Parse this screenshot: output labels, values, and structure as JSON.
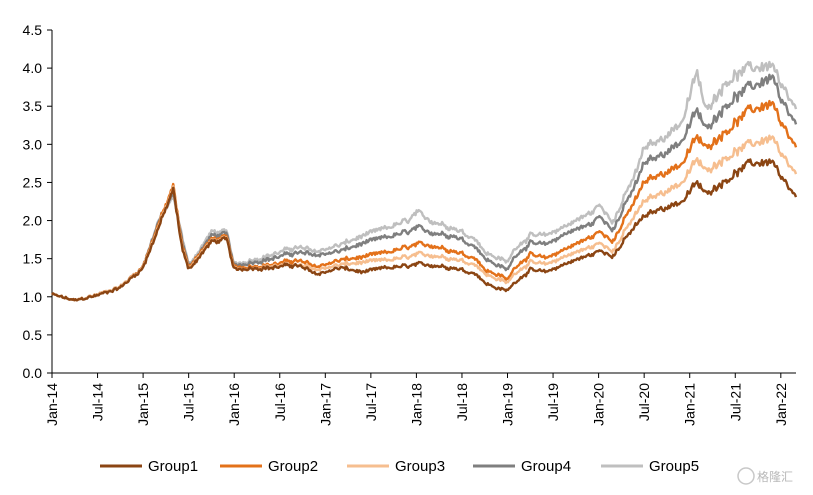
{
  "chart_data": {
    "type": "line",
    "title": "",
    "xlabel": "",
    "ylabel": "",
    "ylim": [
      0.0,
      4.5
    ],
    "y_ticks": [
      "0.0",
      "0.5",
      "1.0",
      "1.5",
      "2.0",
      "2.5",
      "3.0",
      "3.5",
      "4.0",
      "4.5"
    ],
    "x_ticks": [
      "Jan-14",
      "Jul-14",
      "Jan-15",
      "Jul-15",
      "Jan-16",
      "Jul-16",
      "Jan-17",
      "Jul-17",
      "Jan-18",
      "Jul-18",
      "Jan-19",
      "Jul-19",
      "Jan-20",
      "Jul-20",
      "Jan-21",
      "Jul-21",
      "Jan-22"
    ],
    "x_range": [
      "2014-01",
      "2022-03"
    ],
    "grid": false,
    "legend_position": "bottom",
    "x_dates": [
      "2014-01",
      "2014-04",
      "2014-07",
      "2014-10",
      "2015-01",
      "2015-03",
      "2015-05",
      "2015-06",
      "2015-07",
      "2015-08",
      "2015-10",
      "2015-12",
      "2016-01",
      "2016-03",
      "2016-06",
      "2016-09",
      "2016-12",
      "2017-03",
      "2017-06",
      "2017-09",
      "2017-12",
      "2018-01",
      "2018-03",
      "2018-06",
      "2018-09",
      "2018-10",
      "2018-12",
      "2019-01",
      "2019-02",
      "2019-04",
      "2019-06",
      "2019-09",
      "2019-12",
      "2020-01",
      "2020-03",
      "2020-06",
      "2020-07",
      "2020-09",
      "2020-12",
      "2021-02",
      "2021-03",
      "2021-06",
      "2021-09",
      "2021-12",
      "2022-01",
      "2022-03"
    ],
    "series": [
      {
        "name": "Group1",
        "color": "#8B4513",
        "values": [
          1.03,
          0.95,
          1.02,
          1.12,
          1.38,
          1.9,
          2.4,
          1.7,
          1.35,
          1.48,
          1.72,
          1.75,
          1.35,
          1.38,
          1.38,
          1.42,
          1.3,
          1.38,
          1.32,
          1.38,
          1.4,
          1.42,
          1.42,
          1.38,
          1.3,
          1.18,
          1.1,
          1.08,
          1.2,
          1.35,
          1.32,
          1.45,
          1.55,
          1.6,
          1.55,
          1.95,
          2.05,
          2.15,
          2.25,
          2.5,
          2.35,
          2.55,
          2.75,
          2.78,
          2.55,
          2.3
        ]
      },
      {
        "name": "Group2",
        "color": "#E3711A",
        "values": [
          1.03,
          0.95,
          1.03,
          1.13,
          1.4,
          1.95,
          2.45,
          1.75,
          1.38,
          1.52,
          1.75,
          1.78,
          1.38,
          1.4,
          1.42,
          1.48,
          1.4,
          1.48,
          1.52,
          1.58,
          1.65,
          1.68,
          1.68,
          1.6,
          1.5,
          1.35,
          1.28,
          1.22,
          1.4,
          1.55,
          1.5,
          1.65,
          1.78,
          1.85,
          1.75,
          2.3,
          2.5,
          2.6,
          2.75,
          3.1,
          2.95,
          3.2,
          3.45,
          3.55,
          3.25,
          2.95
        ]
      },
      {
        "name": "Group3",
        "color": "#F6BE8F",
        "values": [
          1.03,
          0.95,
          1.03,
          1.13,
          1.39,
          1.92,
          2.42,
          1.72,
          1.36,
          1.5,
          1.73,
          1.76,
          1.36,
          1.38,
          1.4,
          1.42,
          1.36,
          1.42,
          1.45,
          1.48,
          1.52,
          1.55,
          1.55,
          1.5,
          1.42,
          1.3,
          1.22,
          1.18,
          1.32,
          1.45,
          1.42,
          1.55,
          1.65,
          1.7,
          1.62,
          2.1,
          2.25,
          2.35,
          2.5,
          2.8,
          2.65,
          2.85,
          3.0,
          3.1,
          2.85,
          2.6
        ]
      },
      {
        "name": "Group4",
        "color": "#7F7F7F",
        "values": [
          1.03,
          0.95,
          1.03,
          1.13,
          1.4,
          1.98,
          2.35,
          1.8,
          1.4,
          1.52,
          1.8,
          1.82,
          1.4,
          1.45,
          1.5,
          1.58,
          1.55,
          1.6,
          1.7,
          1.78,
          1.85,
          1.9,
          1.85,
          1.8,
          1.65,
          1.5,
          1.4,
          1.35,
          1.55,
          1.7,
          1.68,
          1.85,
          1.95,
          2.05,
          1.9,
          2.5,
          2.75,
          2.85,
          3.05,
          3.45,
          3.2,
          3.55,
          3.75,
          3.9,
          3.55,
          3.25
        ]
      },
      {
        "name": "Group5",
        "color": "#BFBFBF",
        "values": [
          1.03,
          0.95,
          1.03,
          1.13,
          1.4,
          2.0,
          2.3,
          1.85,
          1.42,
          1.55,
          1.85,
          1.85,
          1.42,
          1.48,
          1.55,
          1.65,
          1.6,
          1.68,
          1.8,
          1.9,
          2.0,
          2.1,
          2.0,
          1.9,
          1.75,
          1.58,
          1.5,
          1.45,
          1.65,
          1.8,
          1.8,
          1.95,
          2.1,
          2.2,
          2.0,
          2.65,
          2.95,
          3.05,
          3.3,
          3.95,
          3.45,
          3.85,
          4.0,
          4.05,
          3.75,
          3.45
        ]
      }
    ]
  },
  "watermark": {
    "text": "格隆汇"
  }
}
